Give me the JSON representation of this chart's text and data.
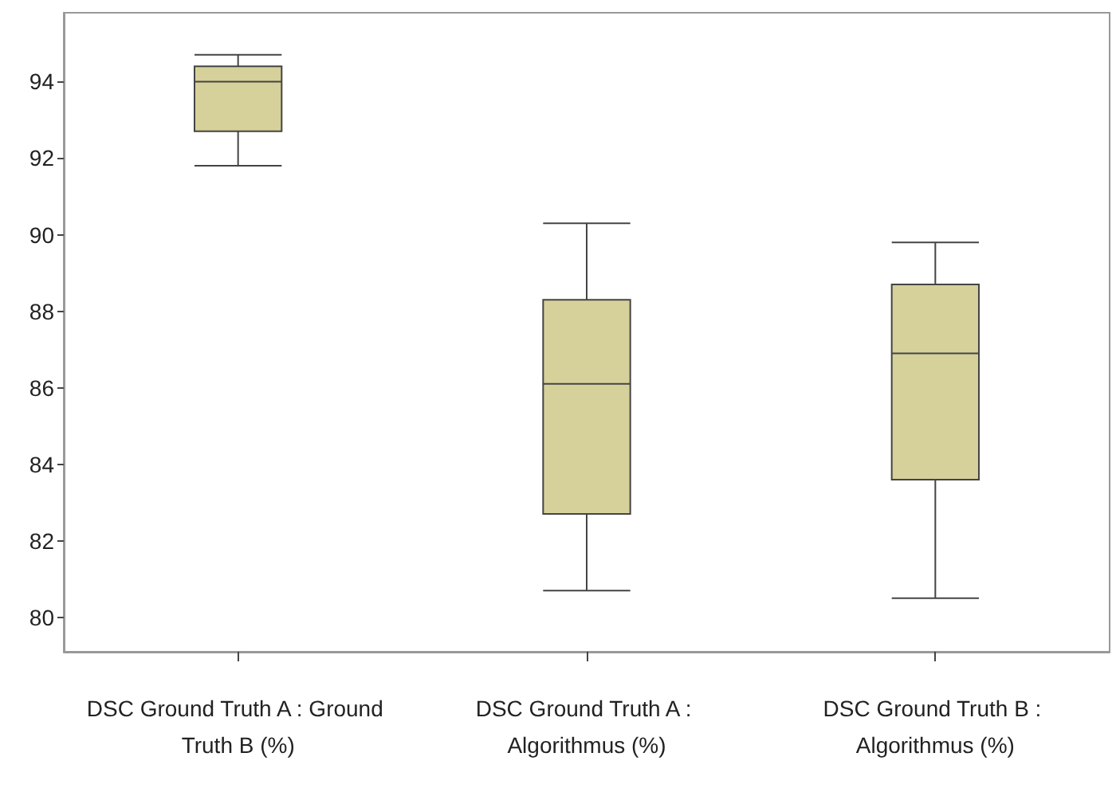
{
  "chart_data": {
    "type": "box",
    "categories": [
      "DSC Ground Truth A : Ground Truth B (%)",
      "DSC Ground Truth A : Algorithmus (%)",
      "DSC Ground Truth B : Algorithmus (%)"
    ],
    "series": [
      {
        "color": "#d6d09a",
        "boxes": [
          {
            "low": 91.8,
            "q1": 92.7,
            "median": 94.0,
            "q3": 94.4,
            "high": 94.7
          },
          {
            "low": 80.7,
            "q1": 82.7,
            "median": 86.1,
            "q3": 88.3,
            "high": 90.3
          },
          {
            "low": 80.5,
            "q1": 83.6,
            "median": 86.9,
            "q3": 88.7,
            "high": 89.8
          }
        ]
      }
    ],
    "ylim": [
      79.1,
      95.8
    ],
    "yticks": [
      80,
      82,
      84,
      86,
      88,
      90,
      92,
      94
    ],
    "grid": false
  }
}
